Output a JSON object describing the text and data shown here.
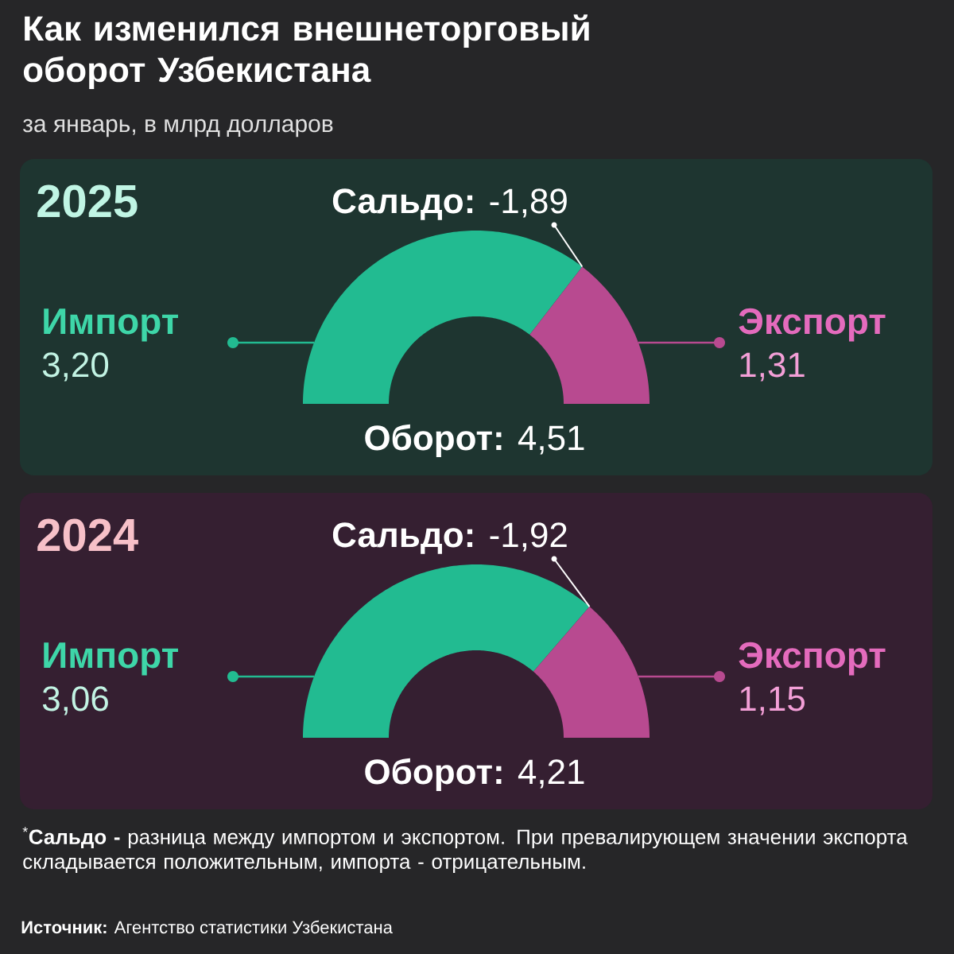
{
  "chart_data": [
    {
      "type": "other",
      "title": "Как изменился внешнеторговый оборот Узбекистана",
      "subtitle": "за январь, в млрд долларов",
      "annotations": [
        "$^{*}$**Сальдо -** разница между импортом и экспортом. При превалирующем значении экспорта складывается положительным, импорта - отрицательным.",
        "**Источник:** Агентство статистики Узбекистана"
      ]
    },
    {
      "type": "donut",
      "title": "2025",
      "categories": [
        "Импорт",
        "Экспорт"
      ],
      "values": [
        3.2,
        1.31
      ],
      "value_labels": [
        "3,20",
        "1,31"
      ],
      "colors": [
        "#22bb91",
        "#b84a90"
      ],
      "annotations": [
        "**Сальдо:** -1,89",
        "**Оборот:** 4,51"
      ]
    },
    {
      "type": "donut",
      "title": "2024",
      "categories": [
        "Импорт",
        "Экспорт"
      ],
      "values": [
        3.06,
        1.15
      ],
      "value_labels": [
        "3,06",
        "1,15"
      ],
      "colors": [
        "#22bb91",
        "#b84a90"
      ],
      "annotations": [
        "**Сальдо:** -1,92",
        "**Оборот:** 4,21"
      ]
    }
  ]
}
